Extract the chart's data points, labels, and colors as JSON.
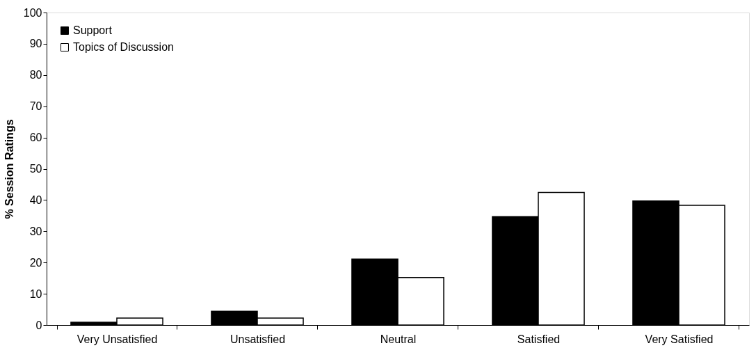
{
  "chart_data": {
    "type": "bar",
    "ylabel": "% Session Ratings",
    "categories": [
      "Very Unsatisfied",
      "Unsatisfied",
      "Neutral",
      "Satisfied",
      "Very Satisfied"
    ],
    "series": [
      {
        "name": "Support",
        "color": "#000000",
        "values": [
          0.9,
          4.4,
          21.1,
          34.7,
          39.7
        ]
      },
      {
        "name": "Topics of Discussion",
        "color": "#ffffff",
        "values": [
          2.2,
          2.2,
          15.2,
          42.4,
          38.3
        ]
      }
    ],
    "ylim": [
      0,
      100
    ],
    "yticks": [
      0,
      10,
      20,
      30,
      40,
      50,
      60,
      70,
      80,
      90,
      100
    ],
    "grid": false,
    "legend": "top left"
  }
}
